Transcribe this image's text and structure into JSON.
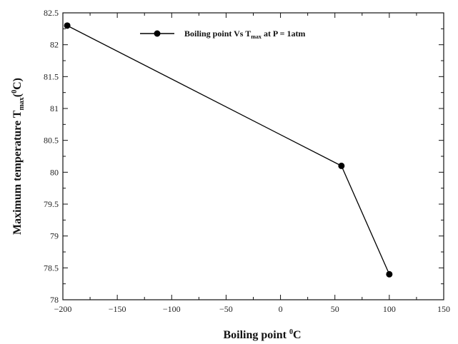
{
  "chart_data": {
    "type": "line",
    "title": "",
    "xlabel": {
      "main": "Boiling point ",
      "sup": "0",
      "post": "C"
    },
    "ylabel": {
      "main": "Maximum temperature T",
      "sub": "max",
      "mid": "(",
      "sup": "0",
      "post": "C)"
    },
    "xlim": [
      -200,
      150
    ],
    "ylim": [
      78,
      82.5
    ],
    "x_ticks": [
      -200,
      -150,
      -100,
      -50,
      0,
      50,
      100,
      150
    ],
    "y_ticks": [
      78,
      78.5,
      79,
      79.5,
      80,
      80.5,
      81,
      81.5,
      82,
      82.5
    ],
    "x_tick_labels": [
      "−200",
      "−150",
      "−100",
      "−50",
      "0",
      "50",
      "100",
      "150"
    ],
    "y_tick_labels": [
      "78",
      "78.5",
      "79",
      "79.5",
      "80",
      "80.5",
      "81",
      "81.5",
      "82",
      "82.5"
    ],
    "grid": false,
    "legend_position": "top-center",
    "series": [
      {
        "name": "Boiling point Vs T_max at P = 1atm",
        "legend": {
          "pre": "Boiling point Vs T",
          "sub": "max",
          "post": " at P = 1atm"
        },
        "color": "#000000",
        "marker": "circle",
        "x": [
          -196,
          56,
          100
        ],
        "y": [
          82.3,
          80.1,
          78.4
        ]
      }
    ]
  }
}
